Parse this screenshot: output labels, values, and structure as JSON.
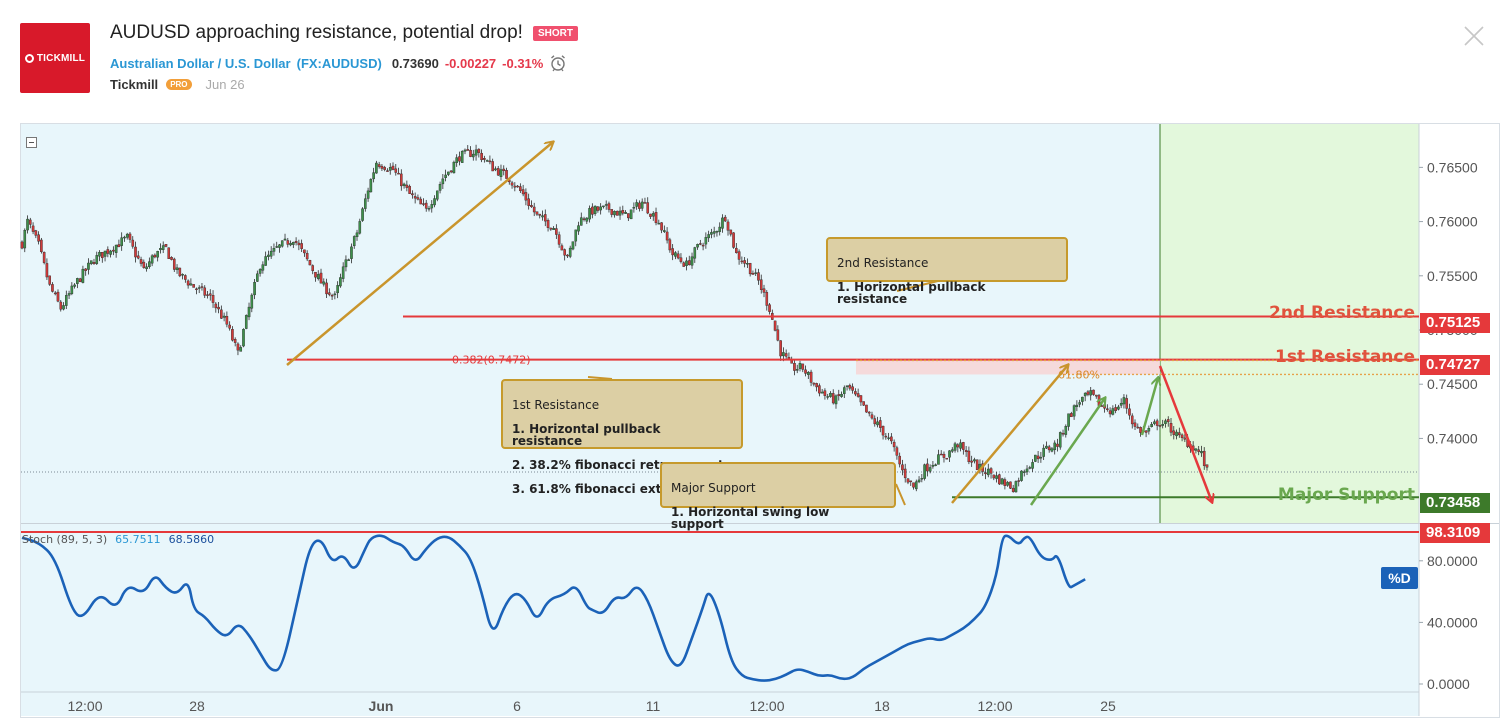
{
  "header": {
    "logo_text": "TICKMILL",
    "title": "AUDUSD approaching resistance, potential drop!",
    "badge": "SHORT",
    "symbol_name": "Australian Dollar / U.S. Dollar",
    "symbol_code": "(FX:AUDUSD)",
    "last_price": "0.73690",
    "change": "-0.00227",
    "change_pct": "-0.31%",
    "author": "Tickmill",
    "author_badge": "PRO",
    "date": "Jun 26"
  },
  "icons": {
    "close": "close-icon",
    "alarm": "alarm-clock-icon",
    "collapse": "collapse-icon"
  },
  "colors": {
    "resistance": "#e5393b",
    "support": "#3d7a2a",
    "support_label": "#6aa84f",
    "resistance_label": "#e0533d",
    "arrow_gold": "#c9952c",
    "arrow_green": "#6aa84f",
    "bull": "#3d8f4a",
    "bear": "#cf3a3a",
    "stoch_line": "#1b62b8",
    "bg_left": "#e8f6fb",
    "bg_right": "#e3f8dc"
  },
  "annotations": {
    "resistance2": {
      "heading": "2nd Resistance",
      "items": [
        "1. Horizontal pullback resistance"
      ]
    },
    "resistance1": {
      "heading": "1st Resistance",
      "items": [
        "1. Horizontal pullback resistance",
        "2. 38.2% fibonacci retracement",
        "3. 61.8% fibonacci extension"
      ]
    },
    "support": {
      "heading": "Major Support",
      "items": [
        "1. Horizontal swing low support"
      ]
    },
    "fib382": "0.382(0.7472)",
    "fib618": "61.80%"
  },
  "levels": [
    {
      "label": "2nd Resistance",
      "value": 0.75125,
      "tag": "0.75125",
      "color": "#e5393b"
    },
    {
      "label": "1st Resistance",
      "value": 0.74727,
      "tag": "0.74727",
      "color": "#e5393b"
    },
    {
      "label": "Major Support",
      "value": 0.73458,
      "tag": "0.73458",
      "color": "#3d7a2a"
    }
  ],
  "stoch": {
    "name": "Stoch (89, 5, 3)",
    "k_value": "65.7511",
    "d_value": "68.5860",
    "top_tag": "98.3109",
    "pd_label": "%D"
  },
  "chart_data": [
    {
      "type": "candlestick",
      "title": "AUDUSD",
      "x_ticks": [
        "12:00",
        "28",
        "Jun",
        "6",
        "11",
        "12:00",
        "18",
        "12:00",
        "25"
      ],
      "y_ticks": [
        "0.76500",
        "0.76000",
        "0.75500",
        "0.75000",
        "0.74500",
        "0.74000"
      ],
      "ylim": [
        0.7322,
        0.769
      ],
      "anchors": [
        [
          0,
          0.758
        ],
        [
          2,
          0.76
        ],
        [
          6,
          0.7578
        ],
        [
          10,
          0.754
        ],
        [
          14,
          0.752
        ],
        [
          20,
          0.7545
        ],
        [
          26,
          0.7565
        ],
        [
          32,
          0.7575
        ],
        [
          38,
          0.7585
        ],
        [
          44,
          0.7555
        ],
        [
          48,
          0.757
        ],
        [
          52,
          0.7575
        ],
        [
          56,
          0.7553
        ],
        [
          62,
          0.754
        ],
        [
          68,
          0.753
        ],
        [
          74,
          0.7505
        ],
        [
          78,
          0.7478
        ],
        [
          82,
          0.752
        ],
        [
          86,
          0.756
        ],
        [
          92,
          0.7575
        ],
        [
          98,
          0.7585
        ],
        [
          104,
          0.756
        ],
        [
          109,
          0.754
        ],
        [
          113,
          0.753
        ],
        [
          116,
          0.7555
        ],
        [
          121,
          0.759
        ],
        [
          125,
          0.763
        ],
        [
          128,
          0.7655
        ],
        [
          134,
          0.7648
        ],
        [
          140,
          0.7625
        ],
        [
          146,
          0.761
        ],
        [
          152,
          0.764
        ],
        [
          158,
          0.766
        ],
        [
          164,
          0.7665
        ],
        [
          170,
          0.765
        ],
        [
          176,
          0.764
        ],
        [
          181,
          0.7625
        ],
        [
          186,
          0.7605
        ],
        [
          192,
          0.7595
        ],
        [
          197,
          0.7565
        ],
        [
          201,
          0.76
        ],
        [
          206,
          0.761
        ],
        [
          212,
          0.7612
        ],
        [
          218,
          0.7605
        ],
        [
          224,
          0.7618
        ],
        [
          230,
          0.76
        ],
        [
          235,
          0.757
        ],
        [
          240,
          0.756
        ],
        [
          245,
          0.758
        ],
        [
          250,
          0.759
        ],
        [
          254,
          0.7605
        ],
        [
          258,
          0.757
        ],
        [
          262,
          0.756
        ],
        [
          266,
          0.7545
        ],
        [
          270,
          0.752
        ],
        [
          274,
          0.748
        ],
        [
          278,
          0.7465
        ],
        [
          282,
          0.7465
        ],
        [
          286,
          0.745
        ],
        [
          290,
          0.744
        ],
        [
          294,
          0.7435
        ],
        [
          298,
          0.7448
        ],
        [
          302,
          0.7435
        ],
        [
          306,
          0.742
        ],
        [
          310,
          0.741
        ],
        [
          314,
          0.7395
        ],
        [
          318,
          0.737
        ],
        [
          322,
          0.7355
        ],
        [
          326,
          0.7372
        ],
        [
          330,
          0.738
        ],
        [
          334,
          0.7385
        ],
        [
          338,
          0.7395
        ],
        [
          342,
          0.7382
        ],
        [
          346,
          0.7372
        ],
        [
          350,
          0.7368
        ],
        [
          354,
          0.736
        ],
        [
          358,
          0.7355
        ],
        [
          362,
          0.7372
        ],
        [
          366,
          0.7382
        ],
        [
          370,
          0.739
        ],
        [
          374,
          0.7395
        ],
        [
          378,
          0.742
        ],
        [
          382,
          0.7435
        ],
        [
          386,
          0.744
        ],
        [
          390,
          0.743
        ],
        [
          394,
          0.7425
        ],
        [
          398,
          0.7435
        ],
        [
          402,
          0.741
        ],
        [
          406,
          0.7405
        ],
        [
          410,
          0.7415
        ],
        [
          414,
          0.7412
        ],
        [
          418,
          0.74
        ],
        [
          422,
          0.7395
        ],
        [
          426,
          0.7385
        ],
        [
          428,
          0.7369
        ]
      ],
      "ohlc_sample_count": 429
    },
    {
      "type": "line",
      "title": "Stoch (89, 5, 3)",
      "y_ticks": [
        "98.3109",
        "80.0000",
        "40.0000",
        "0.0000"
      ],
      "ylim": [
        0,
        100
      ],
      "series": [
        {
          "name": "%D",
          "points": [
            [
              0,
              95
            ],
            [
              6,
              92
            ],
            [
              12,
              82
            ],
            [
              18,
              48
            ],
            [
              22,
              42
            ],
            [
              28,
              60
            ],
            [
              34,
              48
            ],
            [
              38,
              65
            ],
            [
              44,
              58
            ],
            [
              48,
              72
            ],
            [
              52,
              62
            ],
            [
              56,
              58
            ],
            [
              60,
              68
            ],
            [
              62,
              48
            ],
            [
              66,
              44
            ],
            [
              70,
              35
            ],
            [
              74,
              30
            ],
            [
              78,
              40
            ],
            [
              82,
              32
            ],
            [
              86,
              20
            ],
            [
              90,
              8
            ],
            [
              94,
              10
            ],
            [
              100,
              58
            ],
            [
              104,
              90
            ],
            [
              108,
              95
            ],
            [
              112,
              78
            ],
            [
              116,
              85
            ],
            [
              120,
              72
            ],
            [
              124,
              88
            ],
            [
              126,
              95
            ],
            [
              130,
              97
            ],
            [
              134,
              92
            ],
            [
              138,
              90
            ],
            [
              142,
              78
            ],
            [
              146,
              88
            ],
            [
              150,
              95
            ],
            [
              154,
              96
            ],
            [
              158,
              90
            ],
            [
              162,
              82
            ],
            [
              166,
              60
            ],
            [
              170,
              30
            ],
            [
              174,
              50
            ],
            [
              178,
              60
            ],
            [
              182,
              55
            ],
            [
              186,
              40
            ],
            [
              190,
              55
            ],
            [
              196,
              58
            ],
            [
              200,
              65
            ],
            [
              204,
              50
            ],
            [
              206,
              48
            ],
            [
              210,
              45
            ],
            [
              214,
              57
            ],
            [
              218,
              55
            ],
            [
              222,
              65
            ],
            [
              226,
              55
            ],
            [
              230,
              35
            ],
            [
              234,
              15
            ],
            [
              238,
              10
            ],
            [
              242,
              30
            ],
            [
              246,
              50
            ],
            [
              248,
              62
            ],
            [
              252,
              45
            ],
            [
              256,
              15
            ],
            [
              260,
              5
            ],
            [
              264,
              3
            ],
            [
              268,
              2
            ],
            [
              272,
              3
            ],
            [
              276,
              6
            ],
            [
              280,
              10
            ],
            [
              284,
              8
            ],
            [
              288,
              5
            ],
            [
              292,
              6
            ],
            [
              296,
              3
            ],
            [
              300,
              4
            ],
            [
              304,
              10
            ],
            [
              308,
              14
            ],
            [
              312,
              18
            ],
            [
              316,
              22
            ],
            [
              320,
              26
            ],
            [
              324,
              28
            ],
            [
              328,
              30
            ],
            [
              332,
              28
            ],
            [
              336,
              32
            ],
            [
              340,
              36
            ],
            [
              344,
              42
            ],
            [
              348,
              50
            ],
            [
              352,
              70
            ],
            [
              354,
              95
            ],
            [
              356,
              97
            ],
            [
              360,
              90
            ],
            [
              362,
              95
            ],
            [
              364,
              96
            ],
            [
              368,
              82
            ],
            [
              372,
              80
            ],
            [
              374,
              85
            ],
            [
              378,
              62
            ],
            [
              380,
              64
            ],
            [
              384,
              68
            ]
          ]
        }
      ]
    }
  ]
}
